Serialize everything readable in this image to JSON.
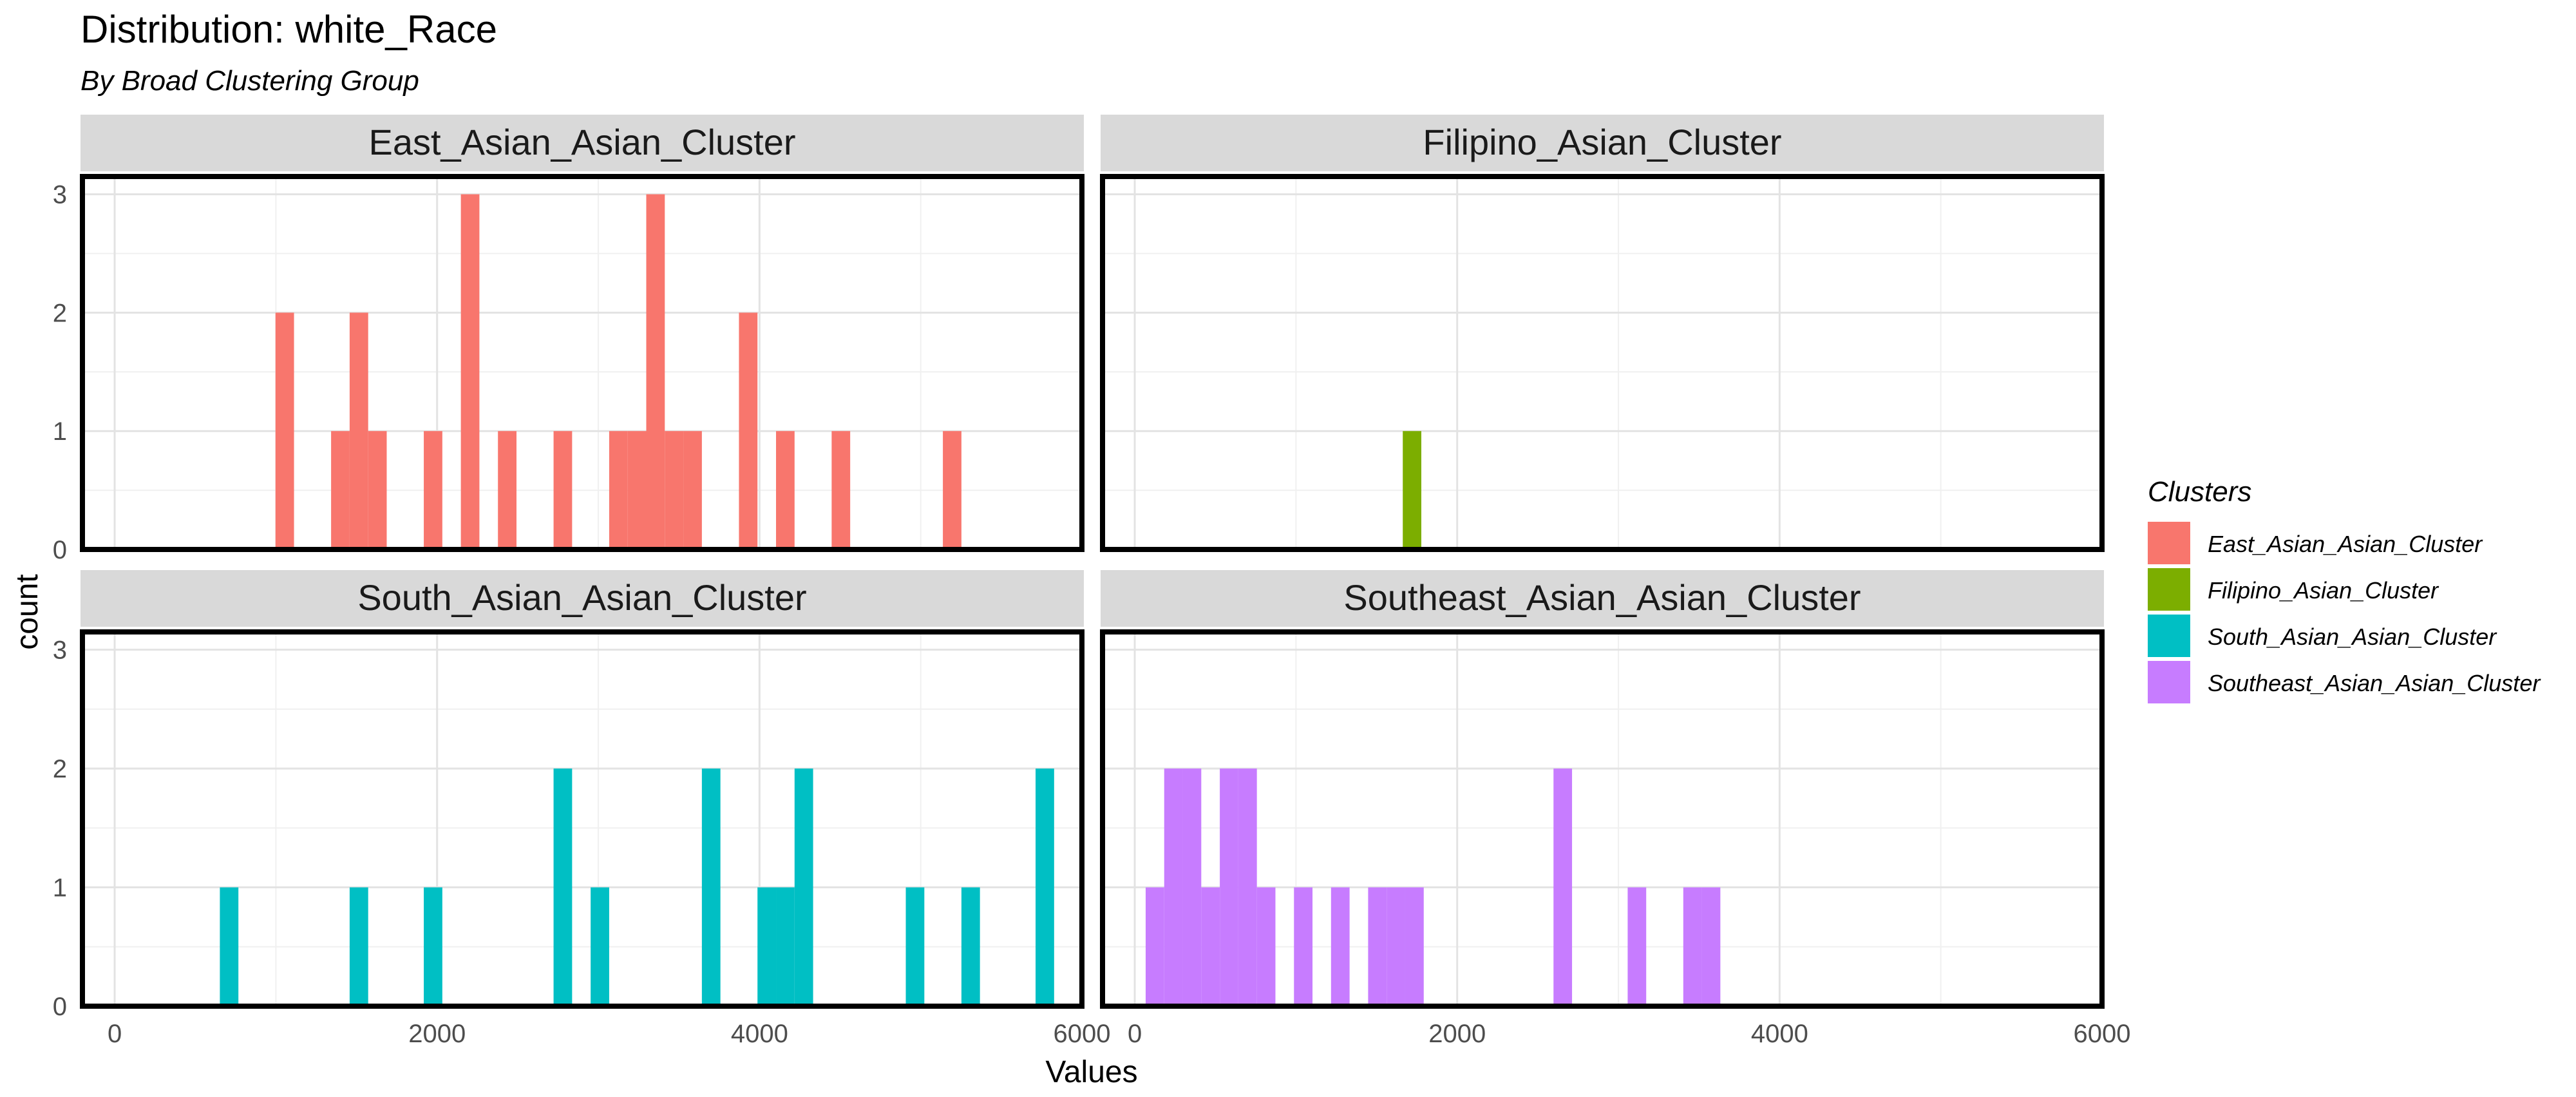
{
  "chart_data": {
    "type": "bar",
    "title": "Distribution: white_Race",
    "subtitle": "By Broad Clustering Group",
    "xlabel": "Values",
    "ylabel": "count",
    "xlim": [
      -200,
      6000
    ],
    "ylim": [
      0,
      3.15
    ],
    "x_ticks": [
      0,
      2000,
      4000,
      6000
    ],
    "y_ticks": [
      0,
      1,
      2,
      3
    ],
    "bin_width": 115,
    "grid": true,
    "legend": {
      "title": "Clusters",
      "position": "right",
      "entries": [
        {
          "label": "East_Asian_Asian_Cluster",
          "color": "#F8766D"
        },
        {
          "label": "Filipino_Asian_Cluster",
          "color": "#7CAE00"
        },
        {
          "label": "South_Asian_Asian_Cluster",
          "color": "#00BFC4"
        },
        {
          "label": "Southeast_Asian_Asian_Cluster",
          "color": "#C77CFF"
        }
      ]
    },
    "facets": [
      {
        "name": "East_Asian_Asian_Cluster",
        "color": "#F8766D",
        "bins": [
          {
            "x": 1055,
            "count": 2
          },
          {
            "x": 1400,
            "count": 1
          },
          {
            "x": 1515,
            "count": 2
          },
          {
            "x": 1630,
            "count": 1
          },
          {
            "x": 1975,
            "count": 1
          },
          {
            "x": 2205,
            "count": 3
          },
          {
            "x": 2435,
            "count": 1
          },
          {
            "x": 2780,
            "count": 1
          },
          {
            "x": 3125,
            "count": 1
          },
          {
            "x": 3240,
            "count": 1
          },
          {
            "x": 3355,
            "count": 3
          },
          {
            "x": 3470,
            "count": 1
          },
          {
            "x": 3585,
            "count": 1
          },
          {
            "x": 3930,
            "count": 2
          },
          {
            "x": 4160,
            "count": 1
          },
          {
            "x": 4505,
            "count": 1
          },
          {
            "x": 5195,
            "count": 1
          }
        ]
      },
      {
        "name": "Filipino_Asian_Cluster",
        "color": "#7CAE00",
        "bins": [
          {
            "x": 1720,
            "count": 1
          }
        ]
      },
      {
        "name": "South_Asian_Asian_Cluster",
        "color": "#00BFC4",
        "bins": [
          {
            "x": 710,
            "count": 1
          },
          {
            "x": 1515,
            "count": 1
          },
          {
            "x": 1975,
            "count": 1
          },
          {
            "x": 2780,
            "count": 2
          },
          {
            "x": 3010,
            "count": 1
          },
          {
            "x": 3700,
            "count": 2
          },
          {
            "x": 4045,
            "count": 1
          },
          {
            "x": 4160,
            "count": 1
          },
          {
            "x": 4275,
            "count": 2
          },
          {
            "x": 4965,
            "count": 1
          },
          {
            "x": 5310,
            "count": 1
          },
          {
            "x": 5770,
            "count": 2
          }
        ]
      },
      {
        "name": "Southeast_Asian_Asian_Cluster",
        "color": "#C77CFF",
        "bins": [
          {
            "x": 125,
            "count": 1
          },
          {
            "x": 240,
            "count": 2
          },
          {
            "x": 355,
            "count": 2
          },
          {
            "x": 470,
            "count": 1
          },
          {
            "x": 585,
            "count": 2
          },
          {
            "x": 700,
            "count": 2
          },
          {
            "x": 815,
            "count": 1
          },
          {
            "x": 1045,
            "count": 1
          },
          {
            "x": 1275,
            "count": 1
          },
          {
            "x": 1505,
            "count": 1
          },
          {
            "x": 1620,
            "count": 1
          },
          {
            "x": 1735,
            "count": 1
          },
          {
            "x": 2655,
            "count": 2
          },
          {
            "x": 3115,
            "count": 1
          },
          {
            "x": 3460,
            "count": 1
          },
          {
            "x": 3575,
            "count": 1
          }
        ]
      }
    ]
  }
}
